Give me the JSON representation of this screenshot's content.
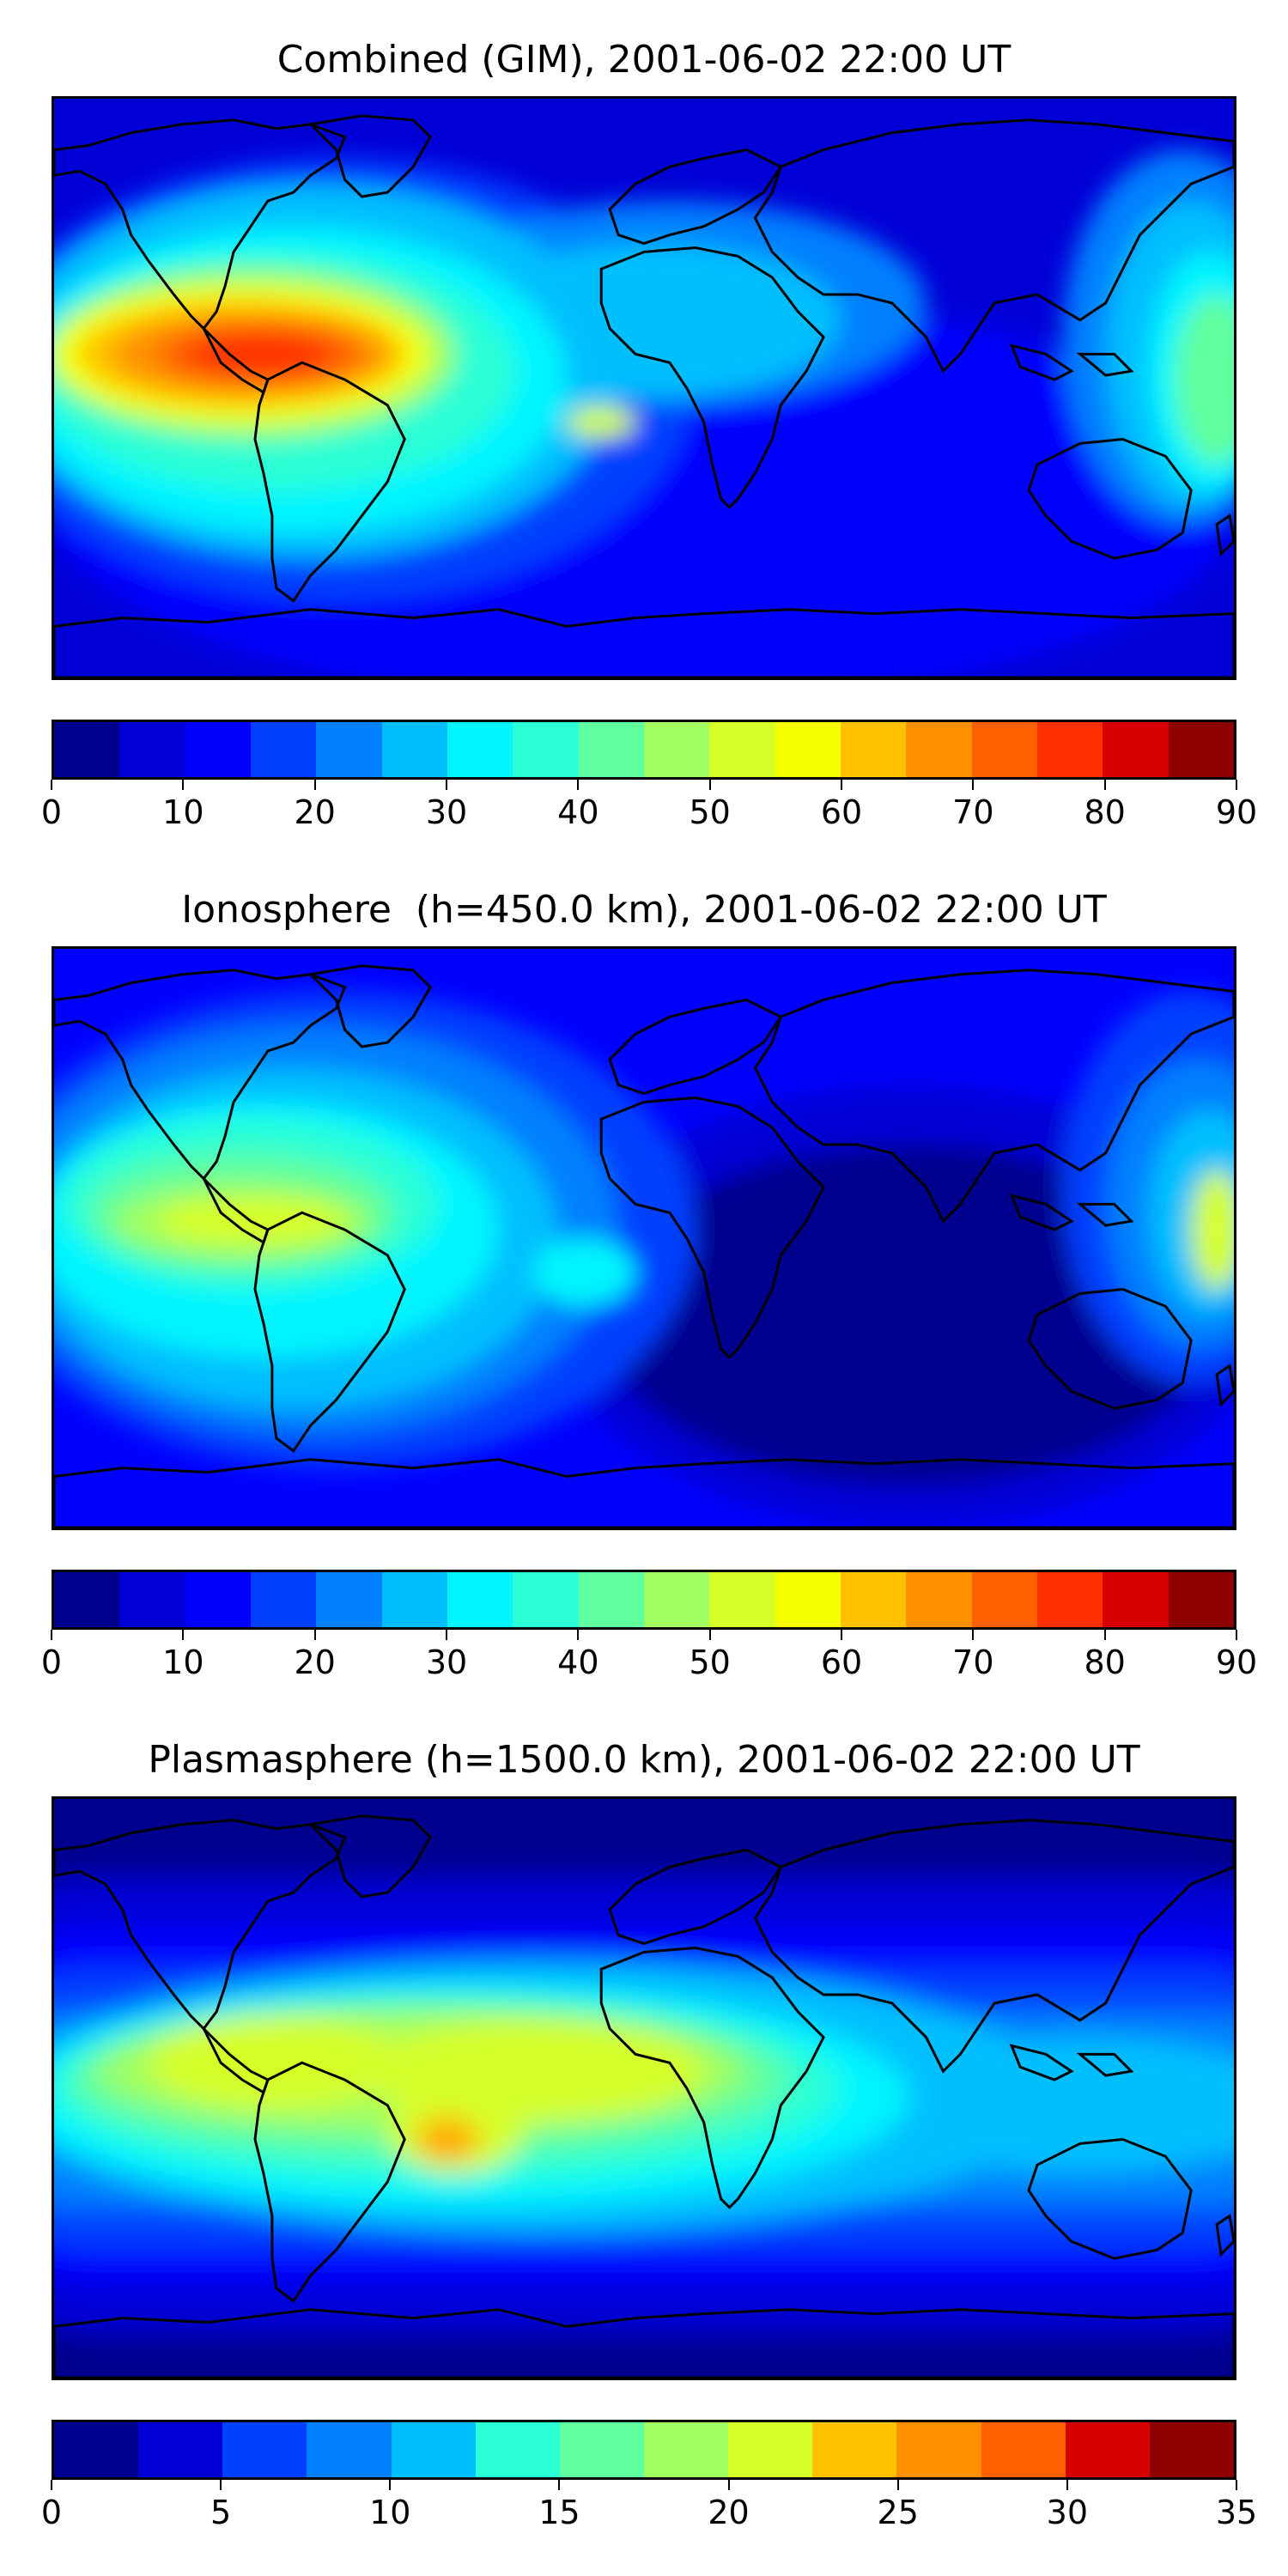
{
  "colormap": [
    "#00008f",
    "#0000d6",
    "#0000ff",
    "#0040ff",
    "#0080ff",
    "#00bfff",
    "#00f5ff",
    "#2affd6",
    "#60ff9f",
    "#9fff60",
    "#d6ff2a",
    "#f5ff00",
    "#ffc000",
    "#ff9000",
    "#ff6000",
    "#ff3000",
    "#d60000",
    "#8f0000"
  ],
  "continents": {
    "stroke": "#000000",
    "regions": [
      "North America",
      "Greenland",
      "South America",
      "Europe",
      "Africa",
      "Asia",
      "Australia",
      "Antarctica"
    ]
  },
  "panels": [
    {
      "id": "combined",
      "title": "Combined (GIM), 2001-06-02 22:00 UT",
      "colorbar": {
        "min": 0,
        "max": 90,
        "levels": 18,
        "ticks": [
          "0",
          "10",
          "20",
          "30",
          "40",
          "50",
          "60",
          "70",
          "80",
          "90"
        ]
      }
    },
    {
      "id": "ionosphere",
      "title": "Ionosphere  (h=450.0 km), 2001-06-02 22:00 UT",
      "colorbar": {
        "min": 0,
        "max": 90,
        "levels": 18,
        "ticks": [
          "0",
          "10",
          "20",
          "30",
          "40",
          "50",
          "60",
          "70",
          "80",
          "90"
        ]
      }
    },
    {
      "id": "plasmasphere",
      "title": "Plasmasphere (h=1500.0 km), 2001-06-02 22:00 UT",
      "colorbar": {
        "min": 0,
        "max": 35,
        "levels": 14,
        "ticks": [
          "0",
          "5",
          "10",
          "15",
          "20",
          "25",
          "30",
          "35"
        ]
      }
    }
  ]
}
